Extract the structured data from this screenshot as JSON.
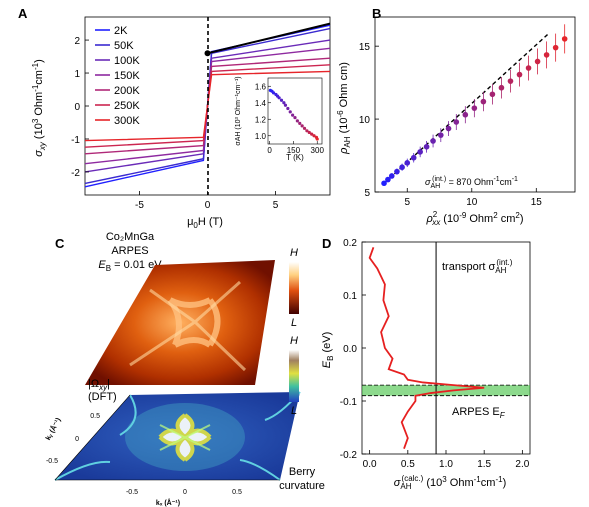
{
  "panelA": {
    "letter": "A",
    "ylabel_main": "σ",
    "ylabel_sub": "xy",
    "ylabel_rest": " (10",
    "ylabel_exp": "3",
    "ylabel_unit": " Ohm",
    "ylabel_unit_exp": "-1",
    "ylabel_unit2": "cm",
    "ylabel_unit2_exp": "-1",
    "ylabel_close": ")",
    "xlabel": "μ",
    "xlabel_sub": "0",
    "xlabel_rest": "H (T)",
    "xticks": [
      "-5",
      "0",
      "5"
    ],
    "yticks": [
      "-2",
      "-1",
      "0",
      "1",
      "2"
    ],
    "legend": [
      "2K",
      "50K",
      "100K",
      "150K",
      "200K",
      "250K",
      "300K"
    ],
    "colors": [
      "#2020ff",
      "#3a2ad0",
      "#6a2bb8",
      "#8e2aa0",
      "#b02878",
      "#cc2650",
      "#e6252a"
    ],
    "inset": {
      "xlabel": "T (K)",
      "ylabel": "σAH (10³ Ohm⁻¹cm⁻¹)",
      "xticks": [
        "0",
        "150",
        "300"
      ],
      "yticks": [
        "1.0",
        "1.2",
        "1.4",
        "1.6"
      ]
    }
  },
  "panelB": {
    "letter": "B",
    "ylabel": "ρ",
    "ylabel_sub": "AH",
    "ylabel_rest": " (10",
    "ylabel_exp": "-6",
    "ylabel_unit": " Ohm cm)",
    "xlabel": "ρ",
    "xlabel_sup": "2",
    "xlabel_sub": "xx",
    "xlabel_rest": " (10",
    "xlabel_exp": "-9",
    "xlabel_unit": " Ohm",
    "xlabel_unit_exp": "2",
    "xlabel_unit2": " cm",
    "xlabel_unit2_exp": "2",
    "xlabel_close": ")",
    "xticks": [
      "5",
      "10",
      "15"
    ],
    "yticks": [
      "5",
      "10",
      "15"
    ],
    "annotation_main": "σ",
    "annotation_sub": "AH",
    "annotation_sup": "(int.)",
    "annotation_value": " = 870 Ohm",
    "annotation_exp1": "-1",
    "annotation_unit": "cm",
    "annotation_exp2": "-1"
  },
  "panelC": {
    "letter": "C",
    "title_line1": "Co₂MnGa",
    "title_line2": "ARPES",
    "title_line3": "E",
    "title_line3_sub": "B",
    "title_line3_rest": " = 0.01 eV",
    "scale_high": "H",
    "scale_low": "L",
    "dft_label1": "|Ω",
    "dft_label1_sub": "xy",
    "dft_label1_end": "|",
    "dft_label2": "(DFT)",
    "berry1": "Berry",
    "berry2": "curvature",
    "kx_label": "kₓ (Å⁻¹)",
    "ky_label": "kᵧ (Å⁻¹)",
    "ticks": [
      "-0.5",
      "0",
      "0.5"
    ]
  },
  "panelD": {
    "letter": "D",
    "ylabel": "E",
    "ylabel_sub": "B",
    "ylabel_rest": " (eV)",
    "xlabel": "σ",
    "xlabel_sub": "AH",
    "xlabel_sup": "(calc.)",
    "xlabel_rest": " (10",
    "xlabel_exp": "3",
    "xlabel_unit": " Ohm",
    "xlabel_unit_exp": "-1",
    "xlabel_unit2": "cm",
    "xlabel_unit2_exp": "-1",
    "xlabel_close": ")",
    "xticks": [
      "0.0",
      "0.5",
      "1.0",
      "1.5",
      "2.0"
    ],
    "yticks": [
      "0.2",
      "0.1",
      "0.0",
      "-0.1",
      "-0.2"
    ],
    "transport_label": "transport σ",
    "transport_sub": "AH",
    "transport_sup": "(int.)",
    "arpes_label": "ARPES E",
    "arpes_sub": "F"
  },
  "chart_data": [
    {
      "type": "line",
      "panel": "A",
      "xlabel": "μ0H (T)",
      "ylabel": "σxy (10^3 Ohm^-1 cm^-1)",
      "xlim": [
        -9,
        9
      ],
      "ylim": [
        -2.7,
        2.7
      ],
      "series": [
        {
          "name": "2K",
          "color": "#2020ff",
          "x": [
            -9,
            -0.3,
            0.3,
            9
          ],
          "y": [
            -2.45,
            -1.65,
            1.65,
            2.45
          ]
        },
        {
          "name": "50K",
          "color": "#3a2ad0",
          "x": [
            -9,
            -0.3,
            0.3,
            9
          ],
          "y": [
            -2.35,
            -1.6,
            1.6,
            2.35
          ]
        },
        {
          "name": "100K",
          "color": "#6a2bb8",
          "x": [
            -9,
            -0.3,
            0.3,
            9
          ],
          "y": [
            -2.0,
            -1.45,
            1.45,
            2.0
          ]
        },
        {
          "name": "150K",
          "color": "#8e2aa0",
          "x": [
            -9,
            -0.3,
            0.3,
            9
          ],
          "y": [
            -1.75,
            -1.35,
            1.35,
            1.75
          ]
        },
        {
          "name": "200K",
          "color": "#b02878",
          "x": [
            -9,
            -0.3,
            0.3,
            9
          ],
          "y": [
            -1.45,
            -1.2,
            1.2,
            1.45
          ]
        },
        {
          "name": "250K",
          "color": "#cc2650",
          "x": [
            -9,
            -0.3,
            0.3,
            9
          ],
          "y": [
            -1.25,
            -1.05,
            1.05,
            1.25
          ]
        },
        {
          "name": "300K",
          "color": "#e6252a",
          "x": [
            -9,
            -0.3,
            0.3,
            9
          ],
          "y": [
            -1.05,
            -0.95,
            0.95,
            1.05
          ]
        }
      ],
      "extrapolation": {
        "x": [
          0,
          9
        ],
        "y": [
          1.6,
          2.5
        ]
      }
    },
    {
      "type": "scatter",
      "panel": "A-inset",
      "xlabel": "T (K)",
      "ylabel": "σAH",
      "xlim": [
        -10,
        330
      ],
      "ylim": [
        0.9,
        1.7
      ],
      "x": [
        5,
        15,
        25,
        40,
        50,
        60,
        75,
        90,
        100,
        115,
        130,
        145,
        160,
        175,
        190,
        205,
        220,
        235,
        250,
        265,
        280,
        295,
        300
      ],
      "y": [
        1.55,
        1.54,
        1.52,
        1.5,
        1.48,
        1.46,
        1.43,
        1.4,
        1.37,
        1.33,
        1.29,
        1.25,
        1.22,
        1.18,
        1.15,
        1.12,
        1.09,
        1.06,
        1.04,
        1.02,
        1.0,
        0.98,
        0.96
      ]
    },
    {
      "type": "scatter",
      "panel": "B",
      "xlabel": "ρxx^2 (10^-9 Ohm^2 cm^2)",
      "ylabel": "ρAH (10^-6 Ohm cm)",
      "xlim": [
        2.5,
        18
      ],
      "ylim": [
        5,
        17
      ],
      "x": [
        3.2,
        3.5,
        3.8,
        4.2,
        4.6,
        5.0,
        5.5,
        6.0,
        6.5,
        7.0,
        7.6,
        8.2,
        8.8,
        9.5,
        10.2,
        10.9,
        11.6,
        12.3,
        13.0,
        13.7,
        14.4,
        15.1,
        15.8,
        16.5,
        17.2
      ],
      "y": [
        5.6,
        5.85,
        6.1,
        6.4,
        6.7,
        7.0,
        7.35,
        7.75,
        8.1,
        8.5,
        8.9,
        9.35,
        9.8,
        10.3,
        10.75,
        11.2,
        11.7,
        12.15,
        12.6,
        13.05,
        13.5,
        13.95,
        14.4,
        14.9,
        15.5
      ],
      "fit": {
        "x": [
          3.2,
          16.0
        ],
        "y": [
          5.6,
          15.9
        ]
      }
    },
    {
      "type": "line",
      "panel": "D",
      "xlabel": "σAH(calc.) (10^3 Ohm^-1 cm^-1)",
      "ylabel": "EB (eV)",
      "xlim": [
        -0.1,
        2.1
      ],
      "ylim": [
        -0.2,
        0.2
      ],
      "x": [
        0.05,
        0.0,
        0.1,
        0.2,
        0.18,
        0.25,
        0.15,
        0.2,
        0.3,
        0.25,
        0.45,
        0.5,
        0.7,
        1.1,
        1.5,
        1.1,
        0.8,
        0.6,
        0.6,
        0.5,
        0.42,
        0.5,
        0.45
      ],
      "y": [
        0.19,
        0.17,
        0.15,
        0.12,
        0.09,
        0.06,
        0.03,
        0.0,
        -0.02,
        -0.04,
        -0.05,
        -0.06,
        -0.065,
        -0.07,
        -0.075,
        -0.08,
        -0.085,
        -0.09,
        -0.1,
        -0.12,
        -0.14,
        -0.17,
        -0.19
      ],
      "transport_x": 0.87,
      "arpes_band": [
        -0.09,
        -0.07
      ]
    }
  ]
}
